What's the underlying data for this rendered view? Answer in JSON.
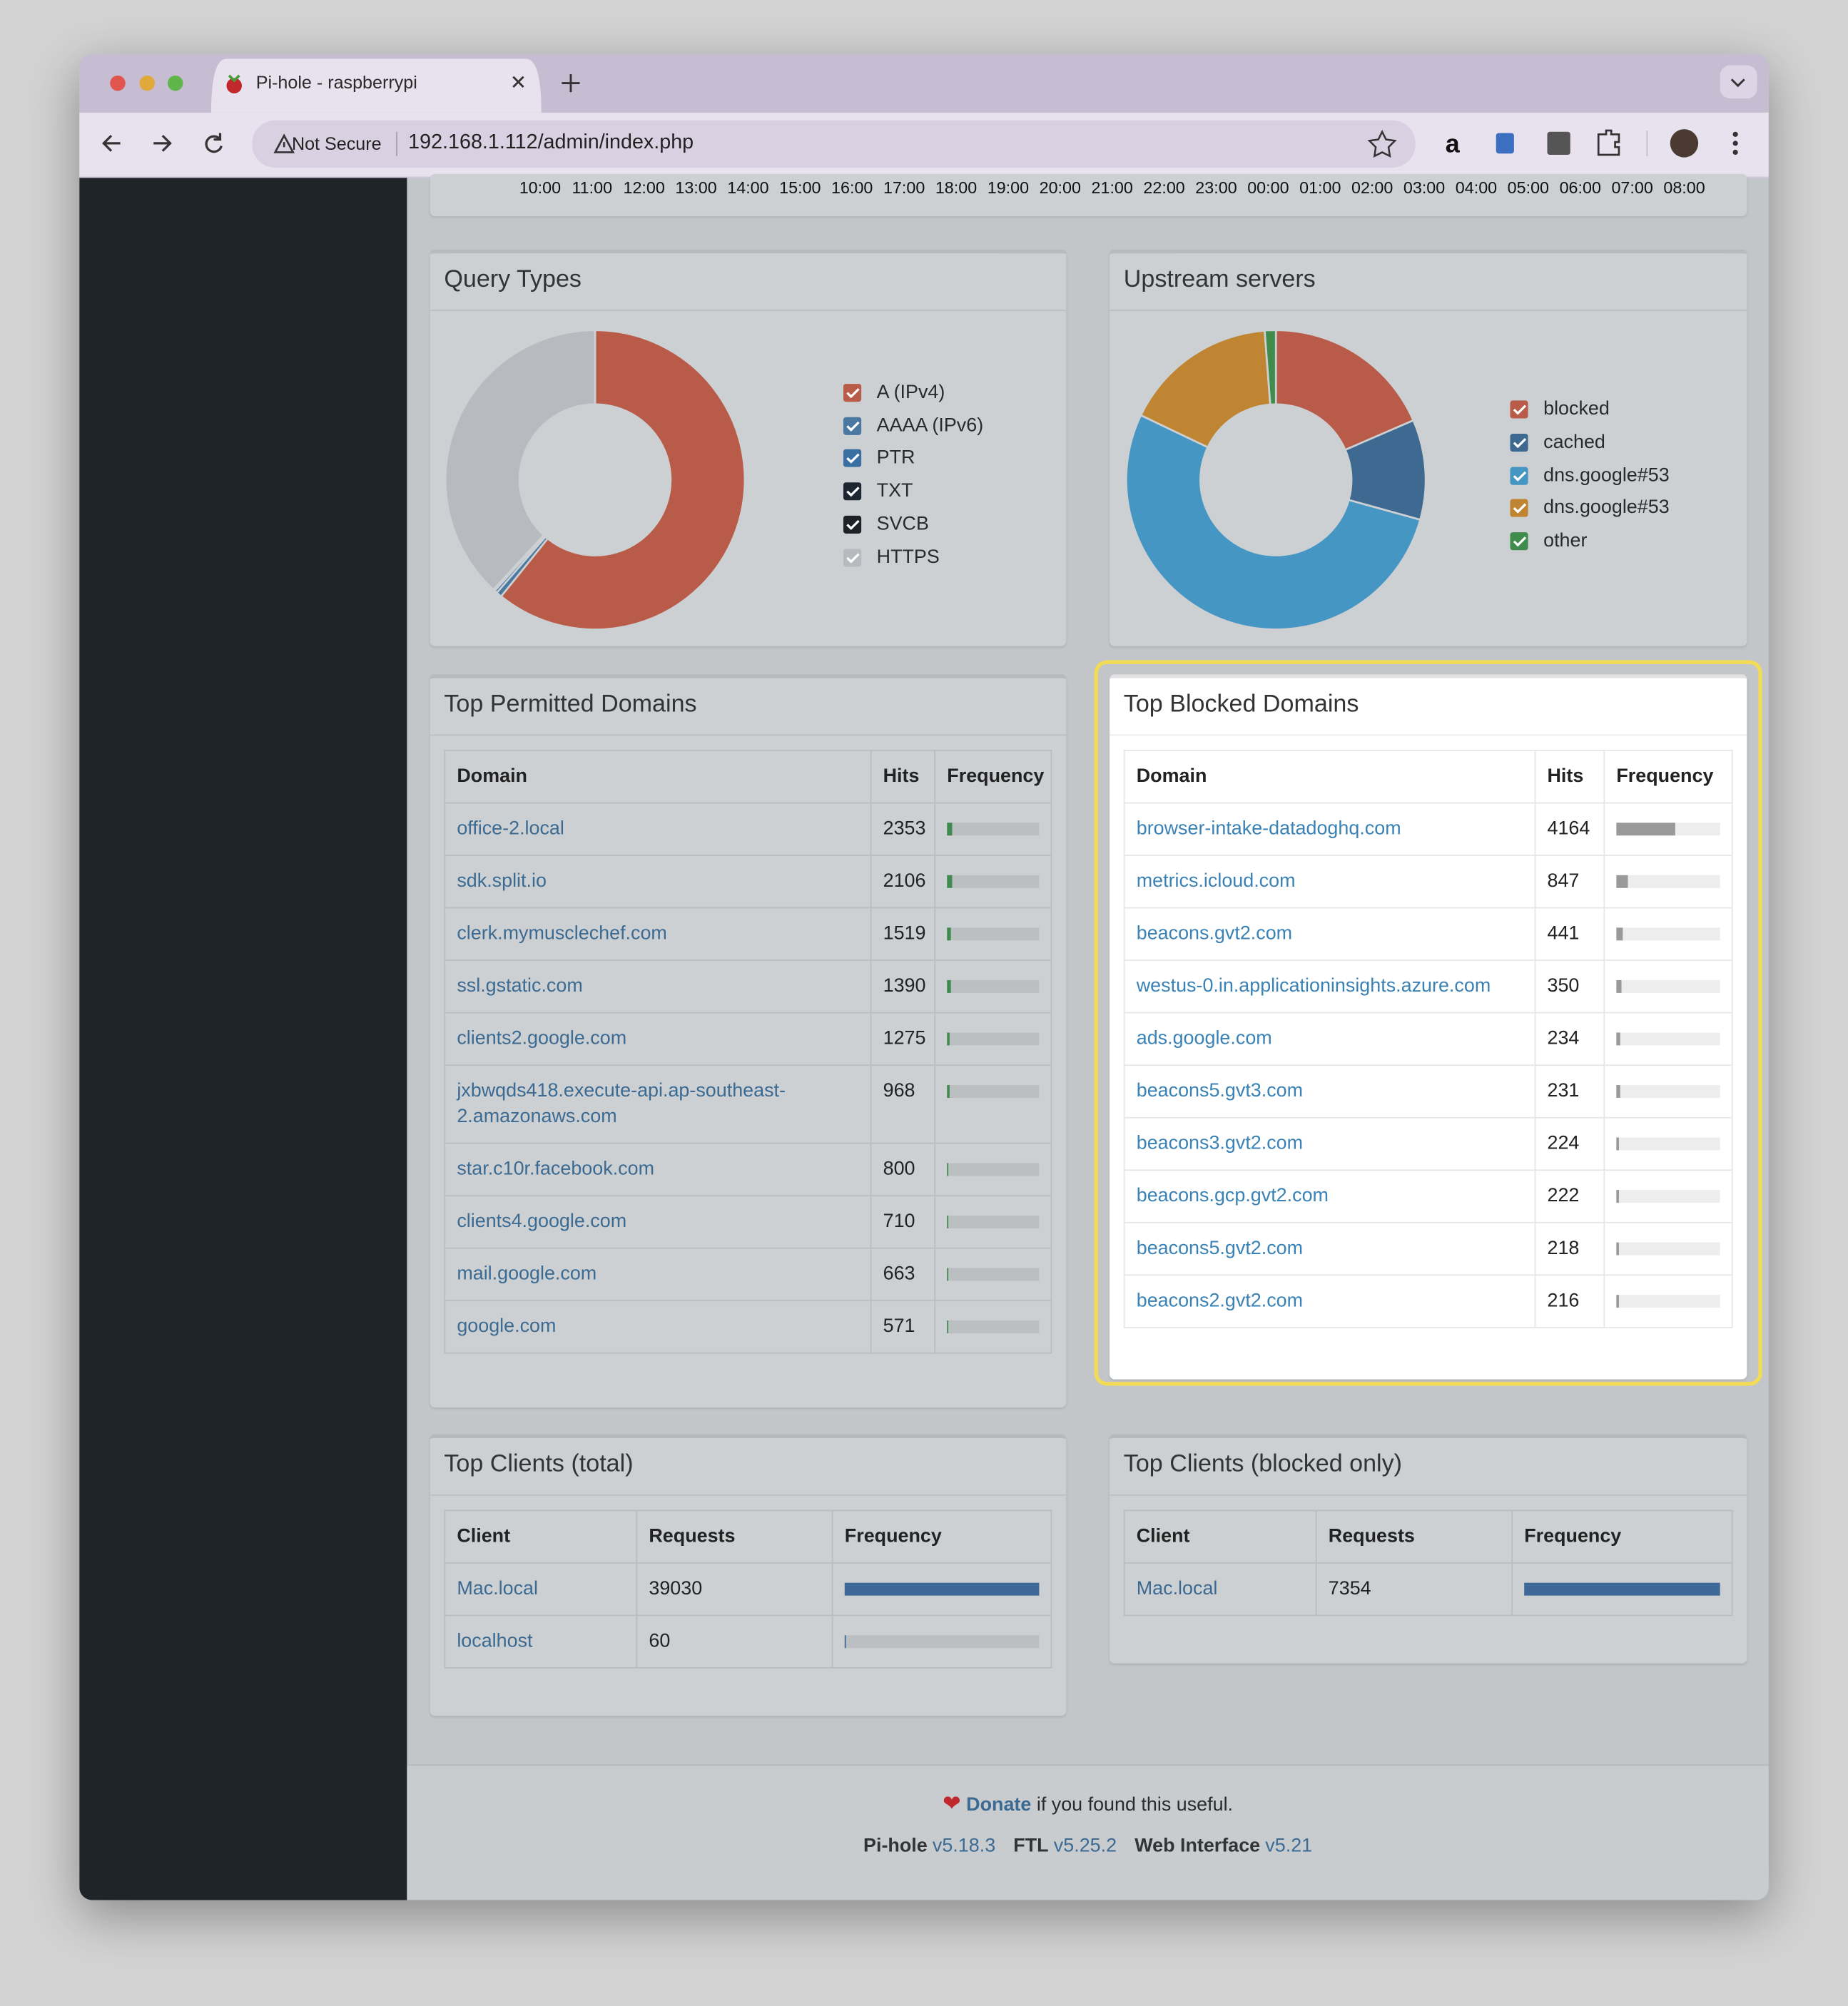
{
  "browser": {
    "tab_title": "Pi-hole - raspberrypi",
    "security_label": "Not Secure",
    "url": "192.168.1.112/admin/index.php"
  },
  "time_axis": [
    "10:00",
    "11:00",
    "12:00",
    "13:00",
    "14:00",
    "15:00",
    "16:00",
    "17:00",
    "18:00",
    "19:00",
    "20:00",
    "21:00",
    "22:00",
    "23:00",
    "00:00",
    "01:00",
    "02:00",
    "03:00",
    "04:00",
    "05:00",
    "06:00",
    "07:00",
    "08:00"
  ],
  "chart_data": [
    {
      "type": "donut",
      "title": "Query Types",
      "categories": [
        "A (IPv4)",
        "AAAA (IPv6)",
        "PTR",
        "TXT",
        "SVCB",
        "HTTPS"
      ],
      "values": [
        60.8,
        0.6,
        0.3,
        0.1,
        0.1,
        38.1
      ],
      "colors": [
        "#b85b48",
        "#4a78a0",
        "#3a6fa3",
        "#1c2530",
        "#1e2226",
        "#b7bbbf"
      ]
    },
    {
      "type": "donut",
      "title": "Upstream servers",
      "categories": [
        "blocked",
        "cached",
        "dns.google#53",
        "dns.google#53",
        "other"
      ],
      "values": [
        18.5,
        10.8,
        52.8,
        16.7,
        1.2
      ],
      "colors": [
        "#b85b48",
        "#3e6a91",
        "#4596c3",
        "#c08533",
        "#3f8c4d"
      ]
    }
  ],
  "top_permitted": {
    "title": "Top Permitted Domains",
    "columns": [
      "Domain",
      "Hits",
      "Frequency"
    ],
    "rows": [
      [
        "office-2.local",
        2353
      ],
      [
        "sdk.split.io",
        2106
      ],
      [
        "clerk.mymusclechef.com",
        1519
      ],
      [
        "ssl.gstatic.com",
        1390
      ],
      [
        "clients2.google.com",
        1275
      ],
      [
        "jxbwqds418.execute-api.ap-southeast-2.amazonaws.com",
        968
      ],
      [
        "star.c10r.facebook.com",
        800
      ],
      [
        "clients4.google.com",
        710
      ],
      [
        "mail.google.com",
        663
      ],
      [
        "google.com",
        571
      ]
    ],
    "bar_color": "#3f8a4e"
  },
  "top_blocked": {
    "title": "Top Blocked Domains",
    "columns": [
      "Domain",
      "Hits",
      "Frequency"
    ],
    "rows": [
      [
        "browser-intake-datadoghq.com",
        4164
      ],
      [
        "metrics.icloud.com",
        847
      ],
      [
        "beacons.gvt2.com",
        441
      ],
      [
        "westus-0.in.applicationinsights.azure.com",
        350
      ],
      [
        "ads.google.com",
        234
      ],
      [
        "beacons5.gvt3.com",
        231
      ],
      [
        "beacons3.gvt2.com",
        224
      ],
      [
        "beacons.gcp.gvt2.com",
        222
      ],
      [
        "beacons5.gvt2.com",
        218
      ],
      [
        "beacons2.gvt2.com",
        216
      ]
    ],
    "bar_color": "#999999"
  },
  "top_clients_total": {
    "title": "Top Clients (total)",
    "columns": [
      "Client",
      "Requests",
      "Frequency"
    ],
    "rows": [
      [
        "Mac.local",
        39030
      ],
      [
        "localhost",
        60
      ]
    ],
    "bar_color": "#3e6898"
  },
  "top_clients_blocked": {
    "title": "Top Clients (blocked only)",
    "columns": [
      "Client",
      "Requests",
      "Frequency"
    ],
    "rows": [
      [
        "Mac.local",
        7354
      ]
    ],
    "bar_color": "#3e6898"
  },
  "footer": {
    "donate": "Donate",
    "donate_suffix": "if you found this useful.",
    "versions": [
      {
        "name": "Pi-hole",
        "version": "v5.18.3"
      },
      {
        "name": "FTL",
        "version": "v5.25.2"
      },
      {
        "name": "Web Interface",
        "version": "v5.21"
      }
    ]
  }
}
